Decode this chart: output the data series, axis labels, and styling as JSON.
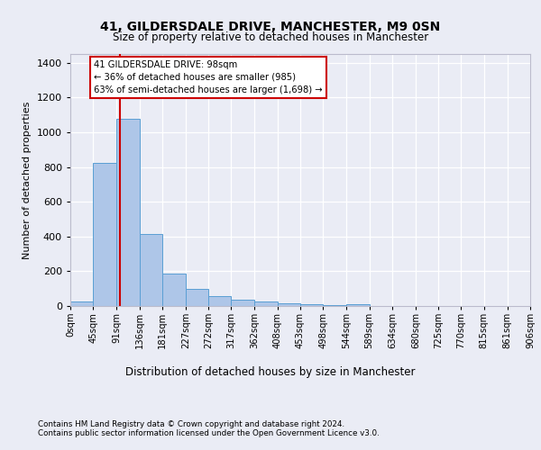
{
  "title1": "41, GILDERSDALE DRIVE, MANCHESTER, M9 0SN",
  "title2": "Size of property relative to detached houses in Manchester",
  "xlabel": "Distribution of detached houses by size in Manchester",
  "ylabel": "Number of detached properties",
  "bin_labels": [
    "0sqm",
    "45sqm",
    "91sqm",
    "136sqm",
    "181sqm",
    "227sqm",
    "272sqm",
    "317sqm",
    "362sqm",
    "408sqm",
    "453sqm",
    "498sqm",
    "544sqm",
    "589sqm",
    "634sqm",
    "680sqm",
    "725sqm",
    "770sqm",
    "815sqm",
    "861sqm",
    "906sqm"
  ],
  "bar_heights": [
    25,
    825,
    1075,
    415,
    185,
    100,
    55,
    35,
    25,
    15,
    10,
    5,
    12,
    0,
    0,
    0,
    0,
    0,
    0,
    0
  ],
  "bin_edges": [
    0,
    45,
    91,
    136,
    181,
    227,
    272,
    317,
    362,
    408,
    453,
    498,
    544,
    589,
    634,
    680,
    725,
    770,
    815,
    861,
    906
  ],
  "bar_color": "#aec6e8",
  "bar_edge_color": "#5a9fd4",
  "vline_x": 98,
  "vline_color": "#cc0000",
  "annotation_text": "41 GILDERSDALE DRIVE: 98sqm\n← 36% of detached houses are smaller (985)\n63% of semi-detached houses are larger (1,698) →",
  "annotation_box_color": "#ffffff",
  "annotation_box_edge": "#cc0000",
  "ylim": [
    0,
    1450
  ],
  "yticks": [
    0,
    200,
    400,
    600,
    800,
    1000,
    1200,
    1400
  ],
  "footer1": "Contains HM Land Registry data © Crown copyright and database right 2024.",
  "footer2": "Contains public sector information licensed under the Open Government Licence v3.0.",
  "bg_color": "#eaecf5",
  "plot_bg_color": "#eaecf5"
}
